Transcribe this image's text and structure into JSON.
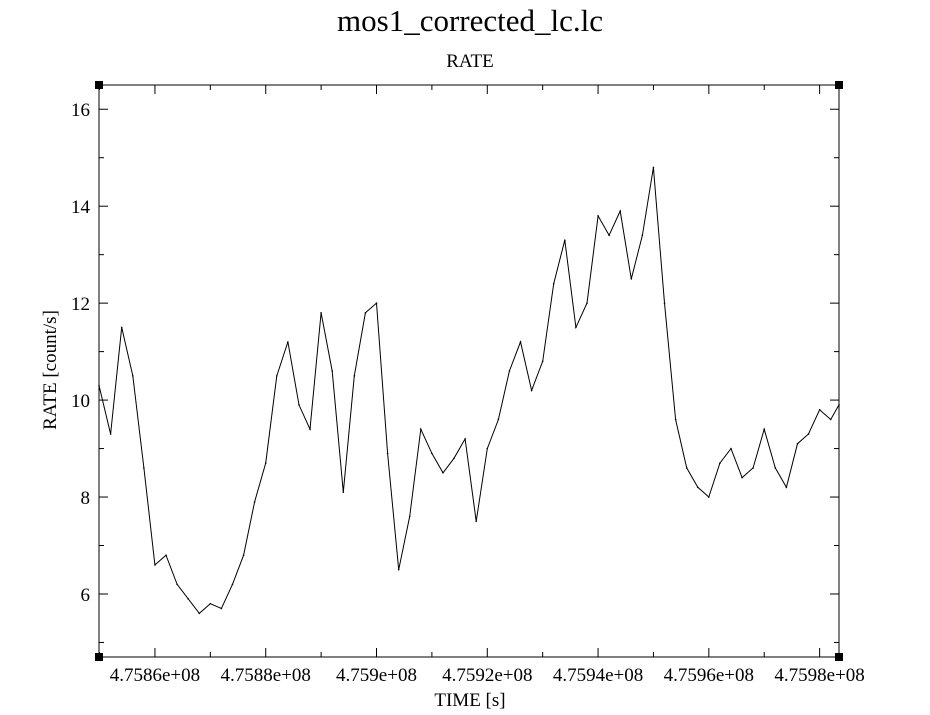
{
  "chart_data": {
    "type": "line",
    "title": "mos1_corrected_lc.lc",
    "subtitle": "RATE",
    "xlabel": "TIME [s]",
    "ylabel": "RATE [count/s]",
    "xlim": [
      475849900,
      475983500
    ],
    "ylim": [
      4.7,
      16.5
    ],
    "grid": false,
    "legend": "none",
    "x_ticks": [
      475860000,
      475880000,
      475900000,
      475920000,
      475940000,
      475960000,
      475980000
    ],
    "x_tick_labels": [
      "4.7586e+08",
      "4.7588e+08",
      "4.759e+08",
      "4.7592e+08",
      "4.7594e+08",
      "4.7596e+08",
      "4.7598e+08"
    ],
    "y_ticks": [
      6,
      8,
      10,
      12,
      14,
      16
    ],
    "y_tick_labels": [
      "6",
      "8",
      "10",
      "12",
      "14",
      "16"
    ],
    "series": [
      {
        "x": [
          475849900,
          475852000,
          475854000,
          475856000,
          475858000,
          475860000,
          475862000,
          475864000,
          475866000,
          475868000,
          475870000,
          475872000,
          475874000,
          475876000,
          475878000,
          475880000,
          475882000,
          475884000,
          475886000,
          475888000,
          475890000,
          475892000,
          475894000,
          475896000,
          475898000,
          475900000,
          475902000,
          475904000,
          475906000,
          475908000,
          475910000,
          475912000,
          475914000,
          475916000,
          475918000,
          475920000,
          475922000,
          475924000,
          475926000,
          475928000,
          475930000,
          475932000,
          475934000,
          475936000,
          475938000,
          475940000,
          475942000,
          475944000,
          475946000,
          475948000,
          475950000,
          475952000,
          475954000,
          475956000,
          475958000,
          475960000,
          475962000,
          475964000,
          475966000,
          475968000,
          475970000,
          475972000,
          475974000,
          475976000,
          475978000,
          475980000,
          475982000,
          475983500
        ],
        "y": [
          10.3,
          9.3,
          11.5,
          10.5,
          8.6,
          6.6,
          6.8,
          6.2,
          5.9,
          5.6,
          5.8,
          5.7,
          6.2,
          6.8,
          7.9,
          8.7,
          10.5,
          11.2,
          9.9,
          9.4,
          11.8,
          10.6,
          8.1,
          10.5,
          11.8,
          12.0,
          8.9,
          6.5,
          7.6,
          9.4,
          8.9,
          8.5,
          8.8,
          9.2,
          7.5,
          9.0,
          9.6,
          10.6,
          11.2,
          10.2,
          10.8,
          12.4,
          13.3,
          11.5,
          12.0,
          13.8,
          13.4,
          13.9,
          12.5,
          13.4,
          14.8,
          12.0,
          9.6,
          8.6,
          8.2,
          8.0,
          8.7,
          9.0,
          8.4,
          8.6,
          9.4,
          8.6,
          8.2,
          9.1,
          9.3,
          9.8,
          9.6,
          9.9
        ]
      }
    ]
  }
}
